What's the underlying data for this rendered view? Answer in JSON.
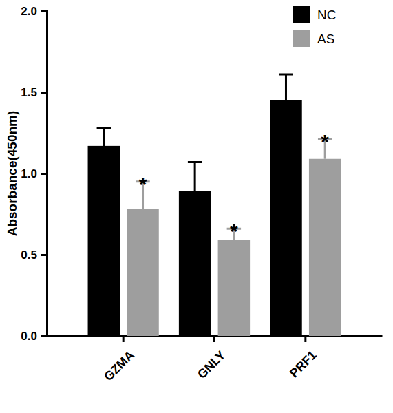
{
  "chart_data": {
    "type": "bar",
    "y_label": "Absorbance(450nm)",
    "categories": [
      "GZMA",
      "GNLY",
      "PRF1"
    ],
    "series": [
      {
        "name": "NC",
        "color": "#000000",
        "values": [
          1.17,
          0.89,
          1.45
        ],
        "errors": [
          0.11,
          0.18,
          0.16
        ]
      },
      {
        "name": "AS",
        "color": "#9e9e9e",
        "values": [
          0.78,
          0.59,
          1.09
        ],
        "errors": [
          0.17,
          0.07,
          0.12
        ],
        "significance": [
          "*",
          "*",
          "*"
        ]
      }
    ],
    "ylim": [
      0,
      2
    ],
    "yticks": [
      {
        "value": 0,
        "label": "0.0"
      },
      {
        "value": 0.5,
        "label": "0.5"
      },
      {
        "value": 1,
        "label": "1.0"
      },
      {
        "value": 1.5,
        "label": "1.5"
      },
      {
        "value": 2,
        "label": "2.0"
      }
    ],
    "legend": "upper right",
    "grid": false
  }
}
